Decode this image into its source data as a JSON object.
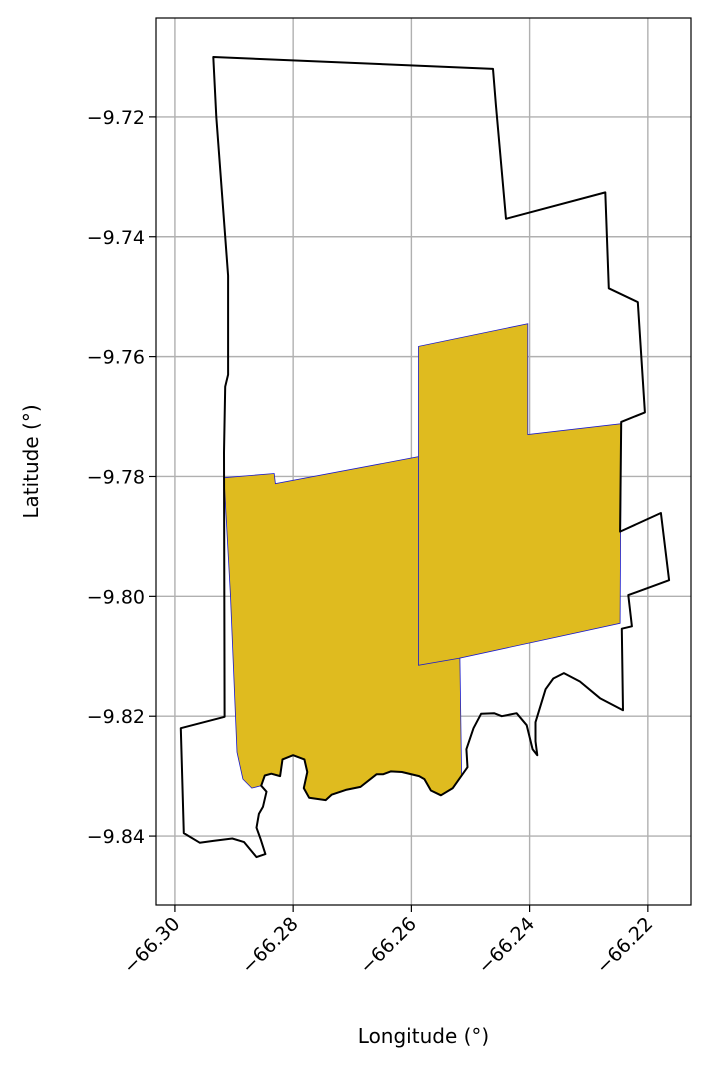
{
  "chart_data": {
    "type": "map",
    "xlabel": "Longitude (°)",
    "ylabel": "Latitude (°)",
    "xlim": [
      -66.3032,
      -66.2127
    ],
    "ylim": [
      -9.8515,
      -9.7035
    ],
    "grid": true,
    "x_ticks": [
      {
        "value": -66.3,
        "label": "−66.30"
      },
      {
        "value": -66.28,
        "label": "−66.28"
      },
      {
        "value": -66.26,
        "label": "−66.26"
      },
      {
        "value": -66.24,
        "label": "−66.24"
      },
      {
        "value": -66.22,
        "label": "−66.22"
      }
    ],
    "y_ticks": [
      {
        "value": -9.72,
        "label": "−9.72"
      },
      {
        "value": -9.74,
        "label": "−9.74"
      },
      {
        "value": -9.76,
        "label": "−9.76"
      },
      {
        "value": -9.78,
        "label": "−9.78"
      },
      {
        "value": -9.8,
        "label": "−9.80"
      },
      {
        "value": -9.82,
        "label": "−9.82"
      },
      {
        "value": -9.84,
        "label": "−9.84"
      }
    ],
    "colors": {
      "outline": "#000000",
      "highlight_fill": "#dfbb1f",
      "highlight_edge": "#1a1acc",
      "grid": "#b0b0b0"
    },
    "outline_polygon": [
      [
        -66.2935,
        -9.71
      ],
      [
        -66.2462,
        -9.712
      ],
      [
        -66.2457,
        -9.718
      ],
      [
        -66.244,
        -9.737
      ],
      [
        -66.2272,
        -9.7326
      ],
      [
        -66.2266,
        -9.7486
      ],
      [
        -66.2217,
        -9.7509
      ],
      [
        -66.2205,
        -9.7693
      ],
      [
        -66.2245,
        -9.7709
      ],
      [
        -66.2247,
        -9.7892
      ],
      [
        -66.2178,
        -9.7861
      ],
      [
        -66.2164,
        -9.7973
      ],
      [
        -66.2233,
        -9.7998
      ],
      [
        -66.2227,
        -9.805
      ],
      [
        -66.2244,
        -9.8054
      ],
      [
        -66.2242,
        -9.819
      ],
      [
        -66.2281,
        -9.817
      ],
      [
        -66.2315,
        -9.8142
      ],
      [
        -66.2342,
        -9.8128
      ],
      [
        -66.236,
        -9.8137
      ],
      [
        -66.2373,
        -9.8155
      ],
      [
        -66.239,
        -9.821
      ],
      [
        -66.239,
        -9.8242
      ],
      [
        -66.2387,
        -9.8265
      ],
      [
        -66.2395,
        -9.8255
      ],
      [
        -66.2405,
        -9.8215
      ],
      [
        -66.2422,
        -9.8195
      ],
      [
        -66.2447,
        -9.82
      ],
      [
        -66.246,
        -9.8195
      ],
      [
        -66.2482,
        -9.8196
      ],
      [
        -66.2495,
        -9.822
      ],
      [
        -66.2507,
        -9.8255
      ],
      [
        -66.2505,
        -9.8285
      ],
      [
        -66.253,
        -9.832
      ],
      [
        -66.255,
        -9.8332
      ],
      [
        -66.2567,
        -9.8324
      ],
      [
        -66.2578,
        -9.8305
      ],
      [
        -66.2587,
        -9.83
      ],
      [
        -66.2616,
        -9.8293
      ],
      [
        -66.2635,
        -9.8292
      ],
      [
        -66.2648,
        -9.8297
      ],
      [
        -66.2659,
        -9.8297
      ],
      [
        -66.2686,
        -9.8318
      ],
      [
        -66.2711,
        -9.8323
      ],
      [
        -66.2735,
        -9.8331
      ],
      [
        -66.2745,
        -9.834
      ],
      [
        -66.2773,
        -9.8336
      ],
      [
        -66.2782,
        -9.832
      ],
      [
        -66.2776,
        -9.8293
      ],
      [
        -66.2781,
        -9.8272
      ],
      [
        -66.28,
        -9.8265
      ],
      [
        -66.2818,
        -9.8272
      ],
      [
        -66.2822,
        -9.83
      ],
      [
        -66.2837,
        -9.8296
      ],
      [
        -66.2848,
        -9.8299
      ],
      [
        -66.2854,
        -9.8316
      ],
      [
        -66.2845,
        -9.8326
      ],
      [
        -66.2851,
        -9.8351
      ],
      [
        -66.2858,
        -9.8363
      ],
      [
        -66.2862,
        -9.8386
      ],
      [
        -66.2855,
        -9.8405
      ],
      [
        -66.2847,
        -9.843
      ],
      [
        -66.2862,
        -9.8435
      ],
      [
        -66.2883,
        -9.841
      ],
      [
        -66.2903,
        -9.8404
      ],
      [
        -66.2935,
        -9.8408
      ],
      [
        -66.2958,
        -9.8411
      ],
      [
        -66.2985,
        -9.8395
      ],
      [
        -66.299,
        -9.822
      ],
      [
        -66.2916,
        -9.8201
      ],
      [
        -66.2917,
        -9.776
      ],
      [
        -66.2915,
        -9.765
      ],
      [
        -66.291,
        -9.763
      ],
      [
        -66.291,
        -9.7465
      ],
      [
        -66.293,
        -9.72
      ]
    ],
    "highlight_polygons": [
      [
        [
          -66.2917,
          -9.7802
        ],
        [
          -66.2832,
          -9.7795
        ],
        [
          -66.283,
          -9.7812
        ],
        [
          -66.2588,
          -9.7767
        ],
        [
          -66.2588,
          -9.7583
        ],
        [
          -66.2403,
          -9.7545
        ],
        [
          -66.2403,
          -9.773
        ],
        [
          -66.2245,
          -9.7712
        ],
        [
          -66.2247,
          -9.8045
        ],
        [
          -66.2518,
          -9.8103
        ],
        [
          -66.2515,
          -9.83
        ],
        [
          -66.253,
          -9.832
        ],
        [
          -66.255,
          -9.8332
        ],
        [
          -66.2567,
          -9.8324
        ],
        [
          -66.2578,
          -9.8305
        ],
        [
          -66.2587,
          -9.83
        ],
        [
          -66.2616,
          -9.8293
        ],
        [
          -66.2635,
          -9.8292
        ],
        [
          -66.2648,
          -9.8297
        ],
        [
          -66.2659,
          -9.8297
        ],
        [
          -66.2686,
          -9.8318
        ],
        [
          -66.2711,
          -9.8323
        ],
        [
          -66.2735,
          -9.8331
        ],
        [
          -66.2745,
          -9.834
        ],
        [
          -66.2773,
          -9.8336
        ],
        [
          -66.2782,
          -9.832
        ],
        [
          -66.2776,
          -9.8293
        ],
        [
          -66.2781,
          -9.8272
        ],
        [
          -66.28,
          -9.8265
        ],
        [
          -66.2818,
          -9.8272
        ],
        [
          -66.2822,
          -9.83
        ],
        [
          -66.2837,
          -9.8296
        ],
        [
          -66.2848,
          -9.8299
        ],
        [
          -66.2854,
          -9.8316
        ],
        [
          -66.287,
          -9.832
        ],
        [
          -66.2885,
          -9.8305
        ],
        [
          -66.2895,
          -9.826
        ],
        [
          -66.2906,
          -9.8
        ],
        [
          -66.2917,
          -9.7802
        ]
      ]
    ],
    "internal_edges": [
      [
        [
          -66.2588,
          -9.7767
        ],
        [
          -66.2588,
          -9.8115
        ],
        [
          -66.2518,
          -9.8103
        ]
      ]
    ]
  }
}
